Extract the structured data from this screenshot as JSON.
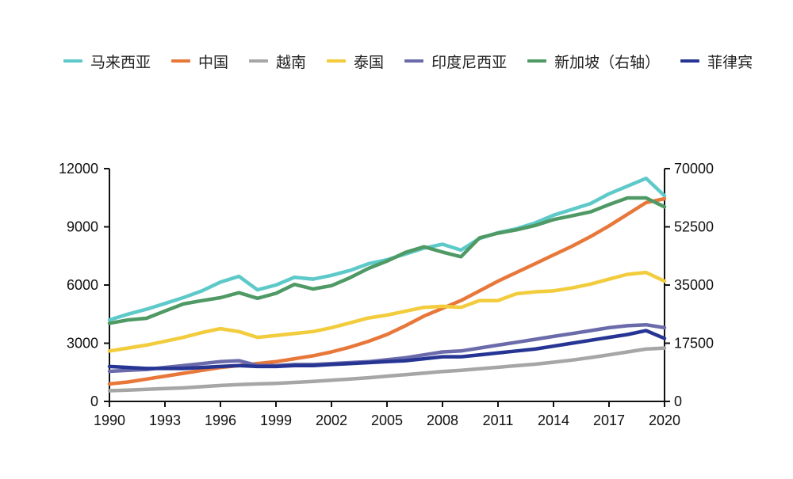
{
  "chart_data": {
    "type": "line",
    "title": "",
    "xlabel": "",
    "ylabel": "",
    "x": [
      1990,
      1991,
      1992,
      1993,
      1994,
      1995,
      1996,
      1997,
      1998,
      1999,
      2000,
      2001,
      2002,
      2003,
      2004,
      2005,
      2006,
      2007,
      2008,
      2009,
      2010,
      2011,
      2012,
      2013,
      2014,
      2015,
      2016,
      2017,
      2018,
      2019,
      2020
    ],
    "x_ticks": [
      "1990",
      "1993",
      "1996",
      "1999",
      "2002",
      "2005",
      "2008",
      "2011",
      "2014",
      "2017",
      "2020"
    ],
    "y_left_ticks": [
      "0",
      "3000",
      "6000",
      "9000",
      "12000"
    ],
    "y_right_ticks": [
      "0",
      "17500",
      "35000",
      "52500",
      "70000"
    ],
    "ylim_left": [
      0,
      12000
    ],
    "ylim_right": [
      0,
      70000
    ],
    "grid": false,
    "legend_position": "top",
    "series": [
      {
        "name": "马来西亚",
        "color": "#5ec9c9",
        "axis": "left",
        "values": [
          4200,
          4500,
          4750,
          5050,
          5350,
          5700,
          6150,
          6450,
          5750,
          6000,
          6400,
          6300,
          6500,
          6750,
          7100,
          7300,
          7600,
          7900,
          8100,
          7800,
          8400,
          8700,
          8900,
          9200,
          9600,
          9900,
          10200,
          10700,
          11100,
          11500,
          10600
        ]
      },
      {
        "name": "中国",
        "color": "#e8773a",
        "axis": "left",
        "values": [
          900,
          1000,
          1150,
          1300,
          1450,
          1600,
          1750,
          1850,
          1950,
          2050,
          2200,
          2350,
          2550,
          2800,
          3100,
          3450,
          3900,
          4400,
          4800,
          5200,
          5700,
          6200,
          6650,
          7100,
          7550,
          8000,
          8500,
          9050,
          9650,
          10250,
          10450
        ]
      },
      {
        "name": "越南",
        "color": "#a6a6a6",
        "axis": "left",
        "values": [
          550,
          580,
          620,
          660,
          700,
          760,
          820,
          870,
          900,
          930,
          980,
          1030,
          1090,
          1150,
          1220,
          1300,
          1380,
          1460,
          1540,
          1600,
          1680,
          1760,
          1840,
          1920,
          2020,
          2130,
          2260,
          2400,
          2550,
          2700,
          2750
        ]
      },
      {
        "name": "泰国",
        "color": "#f2cc3c",
        "axis": "left",
        "values": [
          2600,
          2750,
          2900,
          3100,
          3300,
          3550,
          3750,
          3600,
          3300,
          3400,
          3500,
          3600,
          3800,
          4050,
          4300,
          4450,
          4650,
          4850,
          4900,
          4850,
          5200,
          5200,
          5550,
          5650,
          5700,
          5850,
          6050,
          6300,
          6550,
          6650,
          6200
        ]
      },
      {
        "name": "印度尼西亚",
        "color": "#6b6bab",
        "axis": "left",
        "values": [
          1550,
          1600,
          1650,
          1750,
          1850,
          1950,
          2050,
          2100,
          1850,
          1850,
          1900,
          1900,
          1950,
          2000,
          2050,
          2150,
          2250,
          2400,
          2550,
          2600,
          2750,
          2900,
          3050,
          3200,
          3350,
          3500,
          3650,
          3800,
          3900,
          3950,
          3800
        ]
      },
      {
        "name": "新加坡（右轴）",
        "color": "#4f9965",
        "axis": "right",
        "values": [
          23500,
          24500,
          25000,
          27200,
          29300,
          30300,
          31200,
          32700,
          31000,
          32500,
          35200,
          33800,
          34800,
          37200,
          40000,
          42200,
          44800,
          46500,
          44900,
          43500,
          49200,
          50600,
          51600,
          52900,
          54700,
          55800,
          57000,
          59200,
          61200,
          61200,
          58500
        ]
      },
      {
        "name": "菲律宾",
        "color": "#263593",
        "axis": "left",
        "values": [
          1800,
          1750,
          1700,
          1700,
          1700,
          1750,
          1800,
          1850,
          1800,
          1800,
          1850,
          1850,
          1900,
          1950,
          2000,
          2050,
          2100,
          2200,
          2300,
          2300,
          2400,
          2500,
          2600,
          2700,
          2850,
          3000,
          3150,
          3300,
          3450,
          3650,
          3250
        ]
      }
    ]
  }
}
